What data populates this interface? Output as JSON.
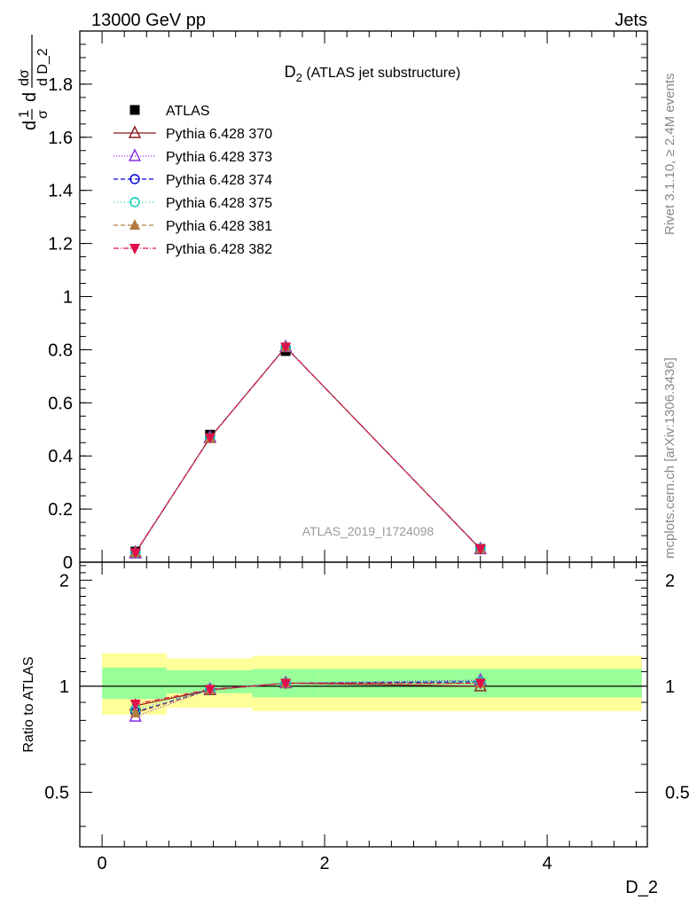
{
  "header": {
    "left": "13000 GeV pp",
    "right": "Jets"
  },
  "side_labels": {
    "rivet": "Rivet 3.1.10, ≥ 2.4M events",
    "mcplots": "mcplots.cern.ch [arXiv:1306.3436]"
  },
  "chart_data": [
    {
      "type": "scatter",
      "title_main": "D",
      "title_sub": "2",
      "title_rest": " (ATLAS jet substructure)",
      "watermark": "ATLAS_2019_I1724098",
      "ylabel": "1/σ dσ/d D_2",
      "xlim": [
        -0.2,
        4.9
      ],
      "ylim": [
        0,
        2.0
      ],
      "yticks": [
        0,
        0.2,
        0.4,
        0.6,
        0.8,
        1,
        1.2,
        1.4,
        1.6,
        1.8
      ],
      "ytick_labels": [
        "0",
        "0.2",
        "0.4",
        "0.6",
        "0.8",
        "1",
        "1.2",
        "1.4",
        "1.6",
        "1.8"
      ],
      "x": [
        0.3,
        0.97,
        1.65,
        3.4
      ],
      "series": [
        {
          "name": "ATLAS",
          "marker": "square",
          "color": "#000000",
          "dash": "none",
          "values": [
            0.04,
            0.48,
            0.795,
            0.05
          ]
        },
        {
          "name": "Pythia 6.428 370",
          "marker": "triangle-open",
          "color": "#8b1a1a",
          "dash": "solid",
          "values": [
            0.036,
            0.468,
            0.81,
            0.049
          ]
        },
        {
          "name": "Pythia 6.428 373",
          "marker": "triangle-open",
          "color": "#8a2be2",
          "dash": "1,2",
          "values": [
            0.033,
            0.47,
            0.81,
            0.05
          ]
        },
        {
          "name": "Pythia 6.428 374",
          "marker": "circle-open",
          "color": "#0000dd",
          "dash": "5,3",
          "values": [
            0.034,
            0.469,
            0.81,
            0.05
          ]
        },
        {
          "name": "Pythia 6.428 375",
          "marker": "circle-open",
          "color": "#00cdb0",
          "dash": "1,3",
          "values": [
            0.034,
            0.469,
            0.81,
            0.05
          ]
        },
        {
          "name": "Pythia 6.428 381",
          "marker": "triangle-filled",
          "color": "#b07a40",
          "dash": "5,3",
          "values": [
            0.035,
            0.468,
            0.81,
            0.05
          ]
        },
        {
          "name": "Pythia 6.428 382",
          "marker": "triangle-down-filled",
          "color": "#e0104a",
          "dash": "6,2,1,2",
          "values": [
            0.036,
            0.469,
            0.81,
            0.05
          ]
        }
      ]
    },
    {
      "type": "line",
      "ylabel": "Ratio to ATLAS",
      "xlabel": "D_2",
      "xlim": [
        -0.2,
        4.9
      ],
      "ylim": [
        0.35,
        2.25
      ],
      "yticks": [
        0.5,
        1,
        2
      ],
      "ytick_labels": [
        "0.5",
        "1",
        "2"
      ],
      "xticks": [
        0,
        2,
        4
      ],
      "xtick_labels": [
        "0",
        "2",
        "4"
      ],
      "bins": [
        [
          0.0,
          0.58
        ],
        [
          0.58,
          1.35
        ],
        [
          1.35,
          1.95
        ],
        [
          1.95,
          4.85
        ]
      ],
      "band_outer": [
        [
          0.83,
          1.24
        ],
        [
          0.87,
          1.2
        ],
        [
          0.85,
          1.22
        ],
        [
          0.85,
          1.22
        ]
      ],
      "band_inner": [
        [
          0.92,
          1.13
        ],
        [
          0.955,
          1.11
        ],
        [
          0.93,
          1.12
        ],
        [
          0.93,
          1.12
        ]
      ],
      "x": [
        0.3,
        0.97,
        1.65,
        3.4
      ],
      "series": [
        {
          "name": "Pythia 6.428 370",
          "values": [
            0.88,
            0.975,
            1.02,
            1.0
          ]
        },
        {
          "name": "Pythia 6.428 373",
          "values": [
            0.82,
            0.98,
            1.02,
            1.04
          ]
        },
        {
          "name": "Pythia 6.428 374",
          "values": [
            0.845,
            0.977,
            1.02,
            1.03
          ]
        },
        {
          "name": "Pythia 6.428 375",
          "values": [
            0.86,
            0.977,
            1.02,
            1.03
          ]
        },
        {
          "name": "Pythia 6.428 381",
          "values": [
            0.84,
            0.975,
            1.02,
            1.02
          ]
        },
        {
          "name": "Pythia 6.428 382",
          "values": [
            0.89,
            0.98,
            1.02,
            1.02
          ]
        }
      ]
    }
  ]
}
